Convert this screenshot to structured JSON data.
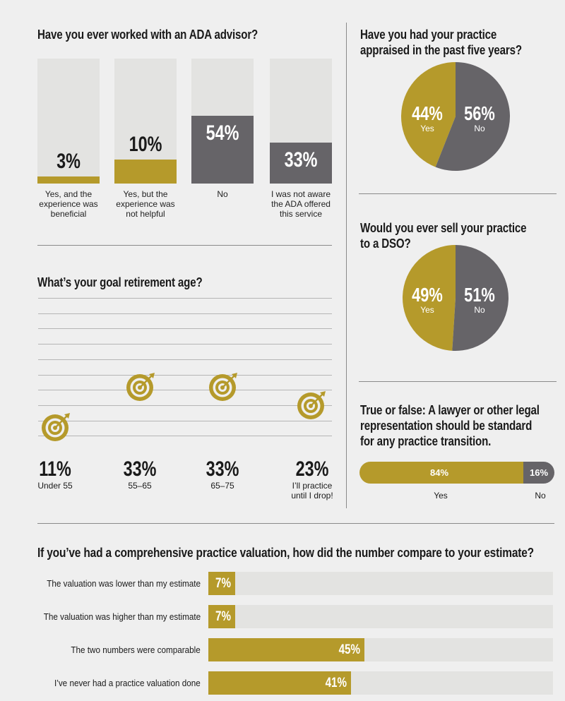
{
  "colors": {
    "gold": "#b59a2b",
    "gray": "#666468",
    "light": "#e3e3e1"
  },
  "chart_data": [
    {
      "type": "bar",
      "title": "Have you ever worked with an ADA advisor?",
      "categories": [
        "Yes, and the experience was beneficial",
        "Yes, but the experience was not helpful",
        "No",
        "I was not aware the ADA offered this service"
      ],
      "values": [
        3,
        10,
        54,
        33
      ],
      "value_labels": [
        "3%",
        "10%",
        "54%",
        "33%"
      ],
      "label_lines": [
        [
          "Yes, and the",
          "experience was",
          "beneficial"
        ],
        [
          "Yes, but the",
          "experience was",
          "not helpful"
        ],
        [
          "No"
        ],
        [
          "I was not aware",
          "the ADA offered",
          "this service"
        ]
      ],
      "ylim": [
        0,
        100
      ]
    },
    {
      "type": "pie",
      "title_lines": [
        "Have you had your practice",
        "appraised in the past five years?"
      ],
      "categories": [
        "Yes",
        "No"
      ],
      "values": [
        44,
        56
      ],
      "value_labels": [
        "44%",
        "56%"
      ]
    },
    {
      "type": "pie",
      "title_lines": [
        "Would you ever sell your practice",
        "to a DSO?"
      ],
      "categories": [
        "Yes",
        "No"
      ],
      "values": [
        49,
        51
      ],
      "value_labels": [
        "49%",
        "51%"
      ]
    },
    {
      "type": "scatter",
      "title": "What’s your goal retirement age?",
      "categories": [
        "Under 55",
        "55–65",
        "65–75",
        "I’ll practice until I drop!"
      ],
      "values": [
        11,
        33,
        33,
        23
      ],
      "value_labels": [
        "11%",
        "33%",
        "33%",
        "23%"
      ],
      "label_lines": [
        [
          "Under 55"
        ],
        [
          "55–65"
        ],
        [
          "65–75"
        ],
        [
          "I’ll practice",
          "until I drop!"
        ]
      ],
      "ylim": [
        0,
        100
      ]
    },
    {
      "type": "bar",
      "orientation": "horizontal-stacked",
      "title_lines": [
        "True or false: A lawyer or other legal",
        "representation should be standard",
        "for any practice transition."
      ],
      "categories": [
        "Yes",
        "No"
      ],
      "values": [
        84,
        16
      ],
      "value_labels": [
        "84%",
        "16%"
      ]
    },
    {
      "type": "bar",
      "orientation": "horizontal",
      "title": "If you’ve had a comprehensive practice valuation, how did the number compare to your estimate?",
      "categories": [
        "The valuation was lower than my estimate",
        "The valuation was higher than my estimate",
        "The two numbers were comparable",
        "I’ve never had a practice valuation done"
      ],
      "values": [
        7,
        7,
        45,
        41
      ],
      "value_labels": [
        "7%",
        "7%",
        "45%",
        "41%"
      ],
      "xlim": [
        0,
        100
      ]
    }
  ]
}
